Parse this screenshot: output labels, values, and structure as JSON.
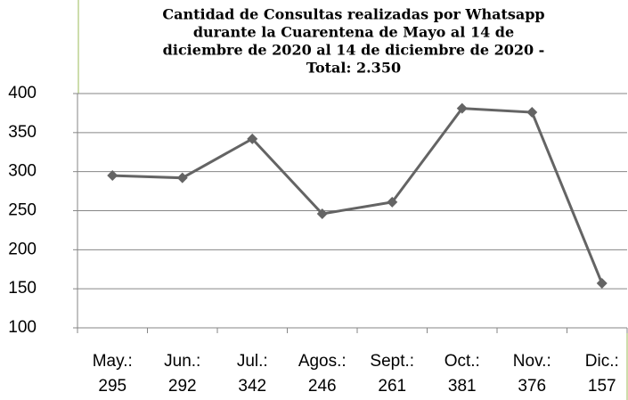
{
  "chart_data": {
    "type": "line",
    "title": [
      "Cantidad de Consultas realizadas por Whatsapp",
      "durante la Cuarentena de Mayo al 14 de",
      "diciembre de 2020 al 14 de diciembre de 2020 -",
      "Total: 2.350"
    ],
    "categories": [
      "May.:",
      "Jun.:",
      "Jul.:",
      "Agos.:",
      "Sept.:",
      "Oct.:",
      "Nov.:",
      "Dic.:"
    ],
    "values": [
      295,
      292,
      342,
      246,
      261,
      381,
      376,
      157
    ],
    "color": "#646464",
    "ylim": [
      100,
      400
    ],
    "yticks": [
      100,
      150,
      200,
      250,
      300,
      350,
      400
    ],
    "grid": true
  }
}
